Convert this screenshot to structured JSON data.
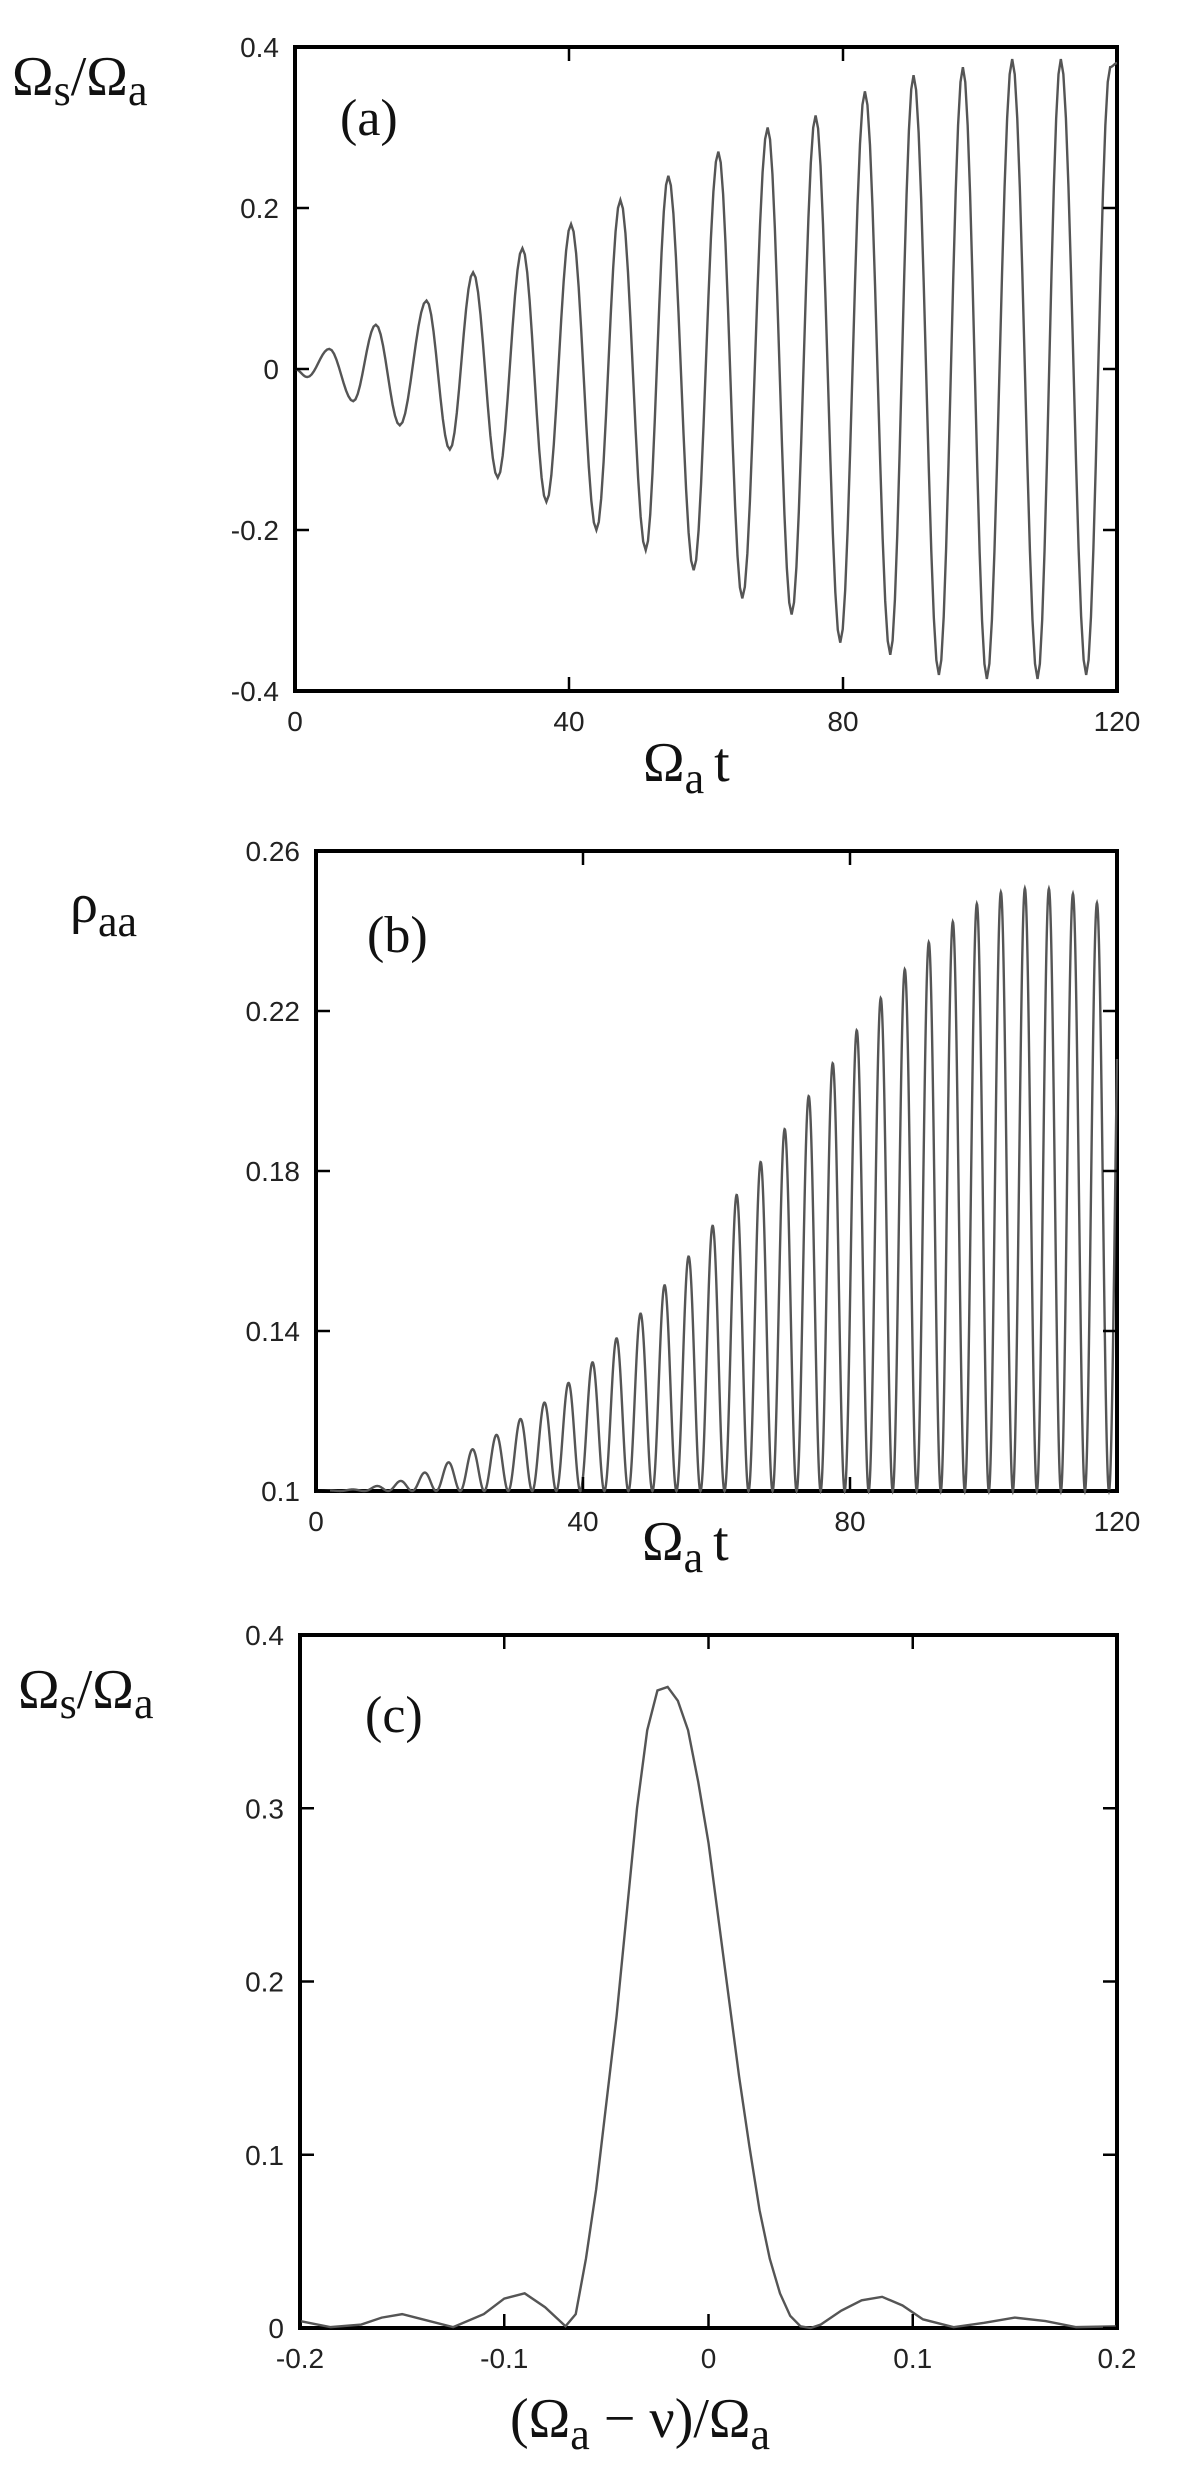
{
  "chart_data": [
    {
      "panel": "(a)",
      "type": "line",
      "ylabel": {
        "main": "Ω",
        "sub1": "s",
        "slash": "/Ω",
        "sub2": "a"
      },
      "xlabel": {
        "main": "Ω",
        "sub": "a",
        "tail": "t"
      },
      "xlim": [
        0,
        120
      ],
      "ylim": [
        -0.4,
        0.4
      ],
      "xticks": [
        "0",
        "40",
        "80",
        "120"
      ],
      "xtick_values": [
        0,
        40,
        80,
        120
      ],
      "yticks": [
        "-0.4",
        "-0.2",
        "0",
        "0.2",
        "0.4"
      ],
      "ytick_values": [
        -0.4,
        -0.2,
        0,
        0.2,
        0.4
      ],
      "series": [
        {
          "description": "oscillation with growing envelope",
          "period": 7.2,
          "extrema": [
            [
              0,
              0.0
            ],
            [
              1.8,
              -0.01
            ],
            [
              5,
              0.025
            ],
            [
              8.5,
              -0.04
            ],
            [
              11.8,
              0.055
            ],
            [
              15.3,
              -0.07
            ],
            [
              19.2,
              0.085
            ],
            [
              22.6,
              -0.1
            ],
            [
              26,
              0.12
            ],
            [
              29.6,
              -0.135
            ],
            [
              33.2,
              0.15
            ],
            [
              36.7,
              -0.165
            ],
            [
              40.3,
              0.18
            ],
            [
              44,
              -0.2
            ],
            [
              47.5,
              0.21
            ],
            [
              51.2,
              -0.225
            ],
            [
              54.5,
              0.24
            ],
            [
              58.2,
              -0.25
            ],
            [
              61.8,
              0.27
            ],
            [
              65.3,
              -0.285
            ],
            [
              69,
              0.3
            ],
            [
              72.5,
              -0.305
            ],
            [
              76,
              0.315
            ],
            [
              79.6,
              -0.34
            ],
            [
              83.2,
              0.345
            ],
            [
              86.9,
              -0.355
            ],
            [
              90.3,
              0.365
            ],
            [
              94,
              -0.38
            ],
            [
              97.5,
              0.375
            ],
            [
              101,
              -0.385
            ],
            [
              104.7,
              0.385
            ],
            [
              108.4,
              -0.385
            ],
            [
              111.8,
              0.385
            ],
            [
              115.5,
              -0.38
            ],
            [
              119,
              0.375
            ],
            [
              120,
              0.38
            ]
          ]
        }
      ]
    },
    {
      "panel": "(b)",
      "type": "line",
      "ylabel": {
        "main": "ρ",
        "sub": "aa"
      },
      "xlabel": {
        "main": "Ω",
        "sub": "a",
        "tail": "t"
      },
      "xlim": [
        0,
        120
      ],
      "ylim": [
        0.1,
        0.26
      ],
      "xticks": [
        "0",
        "40",
        "80",
        "120"
      ],
      "xtick_values": [
        0,
        40,
        80,
        120
      ],
      "yticks": [
        "0.1",
        "0.14",
        "0.18",
        "0.22",
        "0.26"
      ],
      "ytick_values": [
        0.1,
        0.14,
        0.18,
        0.22,
        0.26
      ],
      "series": [
        {
          "description": "oscillation between 0.1 and a growing peak",
          "baseline": 0.1,
          "period": 3.6,
          "peak_envelope": [
            [
              0,
              0.1
            ],
            [
              7,
              0.1005
            ],
            [
              14,
              0.103
            ],
            [
              21,
              0.108
            ],
            [
              28,
              0.115
            ],
            [
              35,
              0.123
            ],
            [
              42,
              0.133
            ],
            [
              49,
              0.145
            ],
            [
              56,
              0.159
            ],
            [
              63,
              0.174
            ],
            [
              70,
              0.19
            ],
            [
              77,
              0.206
            ],
            [
              84,
              0.222
            ],
            [
              91,
              0.236
            ],
            [
              98,
              0.246
            ],
            [
              103,
              0.25
            ],
            [
              108,
              0.251
            ],
            [
              112,
              0.25
            ],
            [
              116,
              0.248
            ],
            [
              120,
              0.244
            ]
          ]
        }
      ]
    },
    {
      "panel": "(c)",
      "type": "line",
      "ylabel": {
        "main": "Ω",
        "sub1": "s",
        "slash": "/Ω",
        "sub2": "a"
      },
      "xlabel": {
        "pre": "(Ω",
        "sub": "a",
        "mid": " − ν)/Ω",
        "sub2": "a"
      },
      "xlim": [
        -0.2,
        0.2
      ],
      "ylim": [
        0,
        0.4
      ],
      "xticks": [
        "-0.2",
        "-0.1",
        "0",
        "0.1",
        "0.2"
      ],
      "xtick_values": [
        -0.2,
        -0.1,
        0,
        0.1,
        0.2
      ],
      "yticks": [
        "0",
        "0.1",
        "0.2",
        "0.3",
        "0.4"
      ],
      "ytick_values": [
        0,
        0.1,
        0.2,
        0.3,
        0.4
      ],
      "series": [
        {
          "x": [
            -0.2,
            -0.185,
            -0.17,
            -0.16,
            -0.15,
            -0.14,
            -0.125,
            -0.11,
            -0.1,
            -0.09,
            -0.08,
            -0.07,
            -0.065,
            -0.06,
            -0.055,
            -0.05,
            -0.045,
            -0.04,
            -0.035,
            -0.03,
            -0.025,
            -0.02,
            -0.015,
            -0.01,
            -0.005,
            0,
            0.005,
            0.01,
            0.015,
            0.02,
            0.025,
            0.03,
            0.035,
            0.04,
            0.045,
            0.05,
            0.055,
            0.065,
            0.075,
            0.085,
            0.095,
            0.105,
            0.12,
            0.135,
            0.15,
            0.165,
            0.18,
            0.2
          ],
          "y": [
            0.004,
            0.0005,
            0.002,
            0.006,
            0.008,
            0.005,
            0.0005,
            0.008,
            0.017,
            0.02,
            0.012,
            0.001,
            0.008,
            0.04,
            0.08,
            0.13,
            0.18,
            0.24,
            0.3,
            0.345,
            0.368,
            0.37,
            0.362,
            0.345,
            0.315,
            0.28,
            0.235,
            0.19,
            0.145,
            0.105,
            0.068,
            0.04,
            0.02,
            0.007,
            0.001,
            0.0,
            0.002,
            0.01,
            0.016,
            0.018,
            0.013,
            0.005,
            0.0005,
            0.003,
            0.006,
            0.004,
            0.0005,
            0.001
          ]
        }
      ]
    }
  ]
}
